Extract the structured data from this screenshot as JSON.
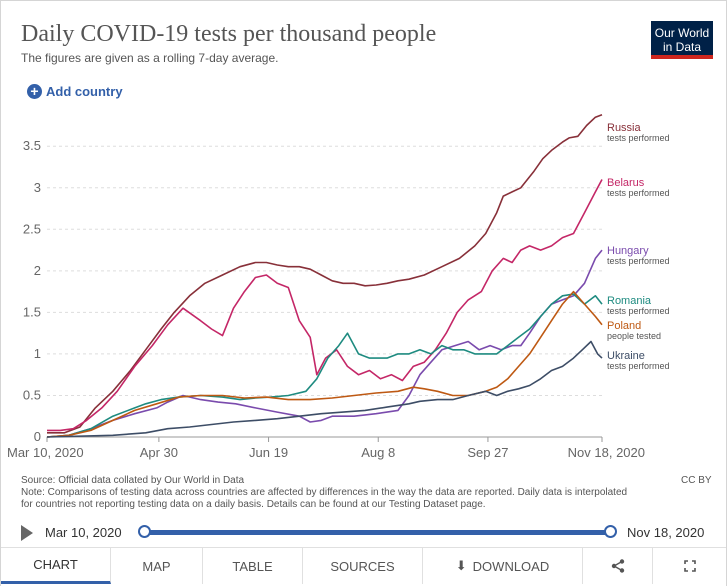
{
  "header": {
    "title": "Daily COVID-19 tests per thousand people",
    "subtitle": "The figures are given as a rolling 7-day average.",
    "logo_line1": "Our World",
    "logo_line2": "in Data"
  },
  "controls": {
    "add_country_label": "Add country",
    "add_icon": "plus-circle-icon"
  },
  "chart_data": {
    "type": "line",
    "title": "Daily COVID-19 tests per thousand people",
    "xlabel": "",
    "ylabel": "",
    "xlim": [
      0,
      253
    ],
    "ylim": [
      0,
      3.9
    ],
    "y_ticks": [
      0,
      0.5,
      1,
      1.5,
      2,
      2.5,
      3,
      3.5
    ],
    "y_tick_labels": [
      "0",
      "0.5",
      "1",
      "1.5",
      "2",
      "2.5",
      "3",
      "3.5"
    ],
    "x_ticks": [
      0,
      51,
      101,
      151,
      201,
      253
    ],
    "x_tick_labels": [
      "Mar 10, 2020",
      "Apr 30",
      "Jun 19",
      "Aug 8",
      "Sep 27",
      "Nov 18, 2020"
    ],
    "x_unit": "days since Mar 10, 2020",
    "grid": "horizontal dashed",
    "series": [
      {
        "name": "Russia",
        "sublabel": "tests performed",
        "color": "#883039",
        "points": [
          [
            0,
            0.05
          ],
          [
            8,
            0.05
          ],
          [
            15,
            0.12
          ],
          [
            22,
            0.35
          ],
          [
            30,
            0.55
          ],
          [
            38,
            0.8
          ],
          [
            45,
            1.05
          ],
          [
            52,
            1.3
          ],
          [
            58,
            1.5
          ],
          [
            65,
            1.7
          ],
          [
            72,
            1.85
          ],
          [
            80,
            1.95
          ],
          [
            88,
            2.05
          ],
          [
            95,
            2.1
          ],
          [
            100,
            2.1
          ],
          [
            105,
            2.07
          ],
          [
            110,
            2.05
          ],
          [
            115,
            2.05
          ],
          [
            120,
            2.02
          ],
          [
            125,
            1.95
          ],
          [
            130,
            1.88
          ],
          [
            135,
            1.85
          ],
          [
            140,
            1.85
          ],
          [
            145,
            1.82
          ],
          [
            150,
            1.83
          ],
          [
            155,
            1.85
          ],
          [
            160,
            1.88
          ],
          [
            165,
            1.9
          ],
          [
            172,
            1.95
          ],
          [
            180,
            2.05
          ],
          [
            188,
            2.15
          ],
          [
            195,
            2.3
          ],
          [
            200,
            2.45
          ],
          [
            205,
            2.7
          ],
          [
            208,
            2.9
          ],
          [
            212,
            2.95
          ],
          [
            216,
            3.0
          ],
          [
            222,
            3.2
          ],
          [
            226,
            3.35
          ],
          [
            230,
            3.45
          ],
          [
            235,
            3.55
          ],
          [
            238,
            3.6
          ],
          [
            242,
            3.62
          ],
          [
            246,
            3.75
          ],
          [
            250,
            3.85
          ],
          [
            253,
            3.88
          ]
        ]
      },
      {
        "name": "Belarus",
        "sublabel": "tests performed",
        "color": "#c42767",
        "points": [
          [
            0,
            0.08
          ],
          [
            6,
            0.08
          ],
          [
            12,
            0.1
          ],
          [
            18,
            0.2
          ],
          [
            25,
            0.35
          ],
          [
            32,
            0.55
          ],
          [
            40,
            0.85
          ],
          [
            48,
            1.1
          ],
          [
            55,
            1.35
          ],
          [
            62,
            1.55
          ],
          [
            70,
            1.4
          ],
          [
            75,
            1.3
          ],
          [
            80,
            1.22
          ],
          [
            85,
            1.55
          ],
          [
            90,
            1.75
          ],
          [
            95,
            1.92
          ],
          [
            100,
            1.95
          ],
          [
            105,
            1.85
          ],
          [
            110,
            1.8
          ],
          [
            115,
            1.4
          ],
          [
            120,
            1.2
          ],
          [
            123,
            0.75
          ],
          [
            127,
            0.95
          ],
          [
            132,
            1.05
          ],
          [
            137,
            0.85
          ],
          [
            142,
            0.75
          ],
          [
            147,
            0.8
          ],
          [
            152,
            0.7
          ],
          [
            157,
            0.75
          ],
          [
            162,
            0.68
          ],
          [
            167,
            0.85
          ],
          [
            172,
            0.9
          ],
          [
            177,
            1.05
          ],
          [
            182,
            1.25
          ],
          [
            187,
            1.5
          ],
          [
            192,
            1.65
          ],
          [
            198,
            1.75
          ],
          [
            203,
            2.0
          ],
          [
            208,
            2.15
          ],
          [
            212,
            2.1
          ],
          [
            216,
            2.25
          ],
          [
            220,
            2.3
          ],
          [
            225,
            2.25
          ],
          [
            230,
            2.3
          ],
          [
            235,
            2.4
          ],
          [
            240,
            2.45
          ],
          [
            245,
            2.7
          ],
          [
            250,
            2.95
          ],
          [
            253,
            3.1
          ]
        ]
      },
      {
        "name": "Hungary",
        "sublabel": "tests performed",
        "color": "#7a4bad",
        "points": [
          [
            0,
            0.0
          ],
          [
            10,
            0.02
          ],
          [
            20,
            0.1
          ],
          [
            30,
            0.2
          ],
          [
            40,
            0.28
          ],
          [
            50,
            0.35
          ],
          [
            55,
            0.42
          ],
          [
            62,
            0.5
          ],
          [
            70,
            0.45
          ],
          [
            78,
            0.42
          ],
          [
            86,
            0.4
          ],
          [
            95,
            0.35
          ],
          [
            105,
            0.3
          ],
          [
            115,
            0.25
          ],
          [
            120,
            0.18
          ],
          [
            125,
            0.2
          ],
          [
            130,
            0.25
          ],
          [
            140,
            0.25
          ],
          [
            150,
            0.28
          ],
          [
            155,
            0.3
          ],
          [
            160,
            0.32
          ],
          [
            165,
            0.5
          ],
          [
            170,
            0.75
          ],
          [
            175,
            0.9
          ],
          [
            180,
            1.05
          ],
          [
            186,
            1.1
          ],
          [
            192,
            1.15
          ],
          [
            197,
            1.05
          ],
          [
            202,
            1.1
          ],
          [
            207,
            1.05
          ],
          [
            212,
            1.1
          ],
          [
            216,
            1.1
          ],
          [
            220,
            1.25
          ],
          [
            225,
            1.45
          ],
          [
            230,
            1.6
          ],
          [
            235,
            1.65
          ],
          [
            240,
            1.7
          ],
          [
            245,
            1.85
          ],
          [
            250,
            2.15
          ],
          [
            253,
            2.25
          ]
        ]
      },
      {
        "name": "Romania",
        "sublabel": "tests performed",
        "color": "#1e8b80",
        "points": [
          [
            0,
            0.0
          ],
          [
            10,
            0.02
          ],
          [
            20,
            0.1
          ],
          [
            30,
            0.25
          ],
          [
            40,
            0.35
          ],
          [
            45,
            0.4
          ],
          [
            52,
            0.45
          ],
          [
            60,
            0.48
          ],
          [
            70,
            0.5
          ],
          [
            80,
            0.48
          ],
          [
            88,
            0.45
          ],
          [
            95,
            0.47
          ],
          [
            102,
            0.48
          ],
          [
            110,
            0.5
          ],
          [
            118,
            0.55
          ],
          [
            123,
            0.7
          ],
          [
            128,
            0.95
          ],
          [
            133,
            1.1
          ],
          [
            137,
            1.25
          ],
          [
            142,
            1.0
          ],
          [
            147,
            0.95
          ],
          [
            150,
            0.95
          ],
          [
            155,
            0.95
          ],
          [
            160,
            1.0
          ],
          [
            165,
            1.0
          ],
          [
            170,
            1.05
          ],
          [
            175,
            1.0
          ],
          [
            180,
            1.1
          ],
          [
            185,
            1.05
          ],
          [
            190,
            1.05
          ],
          [
            195,
            1.0
          ],
          [
            200,
            1.0
          ],
          [
            205,
            1.0
          ],
          [
            210,
            1.1
          ],
          [
            215,
            1.2
          ],
          [
            220,
            1.3
          ],
          [
            225,
            1.45
          ],
          [
            230,
            1.6
          ],
          [
            235,
            1.7
          ],
          [
            240,
            1.72
          ],
          [
            245,
            1.6
          ],
          [
            250,
            1.7
          ],
          [
            253,
            1.6
          ]
        ]
      },
      {
        "name": "Poland",
        "sublabel": "people tested",
        "color": "#be5913",
        "points": [
          [
            0,
            0.0
          ],
          [
            10,
            0.02
          ],
          [
            20,
            0.08
          ],
          [
            30,
            0.2
          ],
          [
            40,
            0.32
          ],
          [
            50,
            0.4
          ],
          [
            60,
            0.48
          ],
          [
            70,
            0.5
          ],
          [
            80,
            0.5
          ],
          [
            90,
            0.47
          ],
          [
            100,
            0.48
          ],
          [
            110,
            0.45
          ],
          [
            120,
            0.45
          ],
          [
            130,
            0.47
          ],
          [
            140,
            0.5
          ],
          [
            150,
            0.53
          ],
          [
            160,
            0.55
          ],
          [
            167,
            0.6
          ],
          [
            172,
            0.58
          ],
          [
            178,
            0.55
          ],
          [
            185,
            0.5
          ],
          [
            192,
            0.5
          ],
          [
            200,
            0.55
          ],
          [
            205,
            0.6
          ],
          [
            210,
            0.7
          ],
          [
            215,
            0.85
          ],
          [
            220,
            1.0
          ],
          [
            225,
            1.2
          ],
          [
            230,
            1.4
          ],
          [
            235,
            1.6
          ],
          [
            240,
            1.75
          ],
          [
            245,
            1.6
          ],
          [
            250,
            1.45
          ],
          [
            253,
            1.35
          ]
        ]
      },
      {
        "name": "Ukraine",
        "sublabel": "tests performed",
        "color": "#3d4d66",
        "points": [
          [
            0,
            0.0
          ],
          [
            30,
            0.02
          ],
          [
            45,
            0.05
          ],
          [
            55,
            0.1
          ],
          [
            65,
            0.12
          ],
          [
            75,
            0.15
          ],
          [
            85,
            0.18
          ],
          [
            95,
            0.2
          ],
          [
            105,
            0.22
          ],
          [
            115,
            0.25
          ],
          [
            125,
            0.28
          ],
          [
            135,
            0.3
          ],
          [
            145,
            0.32
          ],
          [
            155,
            0.36
          ],
          [
            165,
            0.4
          ],
          [
            170,
            0.43
          ],
          [
            178,
            0.45
          ],
          [
            185,
            0.45
          ],
          [
            192,
            0.5
          ],
          [
            200,
            0.55
          ],
          [
            205,
            0.5
          ],
          [
            210,
            0.55
          ],
          [
            215,
            0.58
          ],
          [
            220,
            0.62
          ],
          [
            225,
            0.7
          ],
          [
            230,
            0.8
          ],
          [
            235,
            0.85
          ],
          [
            240,
            0.95
          ],
          [
            244,
            1.05
          ],
          [
            248,
            1.15
          ],
          [
            251,
            1.0
          ],
          [
            253,
            0.95
          ]
        ]
      }
    ]
  },
  "footer": {
    "source": "Source: Official data collated by Our World in Data",
    "note": "Note: Comparisons of testing data across countries are affected by differences in the way the data are reported. Daily data is interpolated for countries not reporting testing data on a daily basis. Details can be found at our Testing Dataset page.",
    "license": "CC BY"
  },
  "timeline": {
    "start_label": "Mar 10, 2020",
    "end_label": "Nov 18, 2020"
  },
  "tabs": [
    {
      "label": "CHART",
      "active": true
    },
    {
      "label": "MAP",
      "active": false
    },
    {
      "label": "TABLE",
      "active": false
    },
    {
      "label": "SOURCES",
      "active": false
    },
    {
      "label": "DOWNLOAD",
      "active": false
    },
    {
      "label": "share-icon",
      "active": false
    },
    {
      "label": "fullscreen-icon",
      "active": false
    }
  ]
}
